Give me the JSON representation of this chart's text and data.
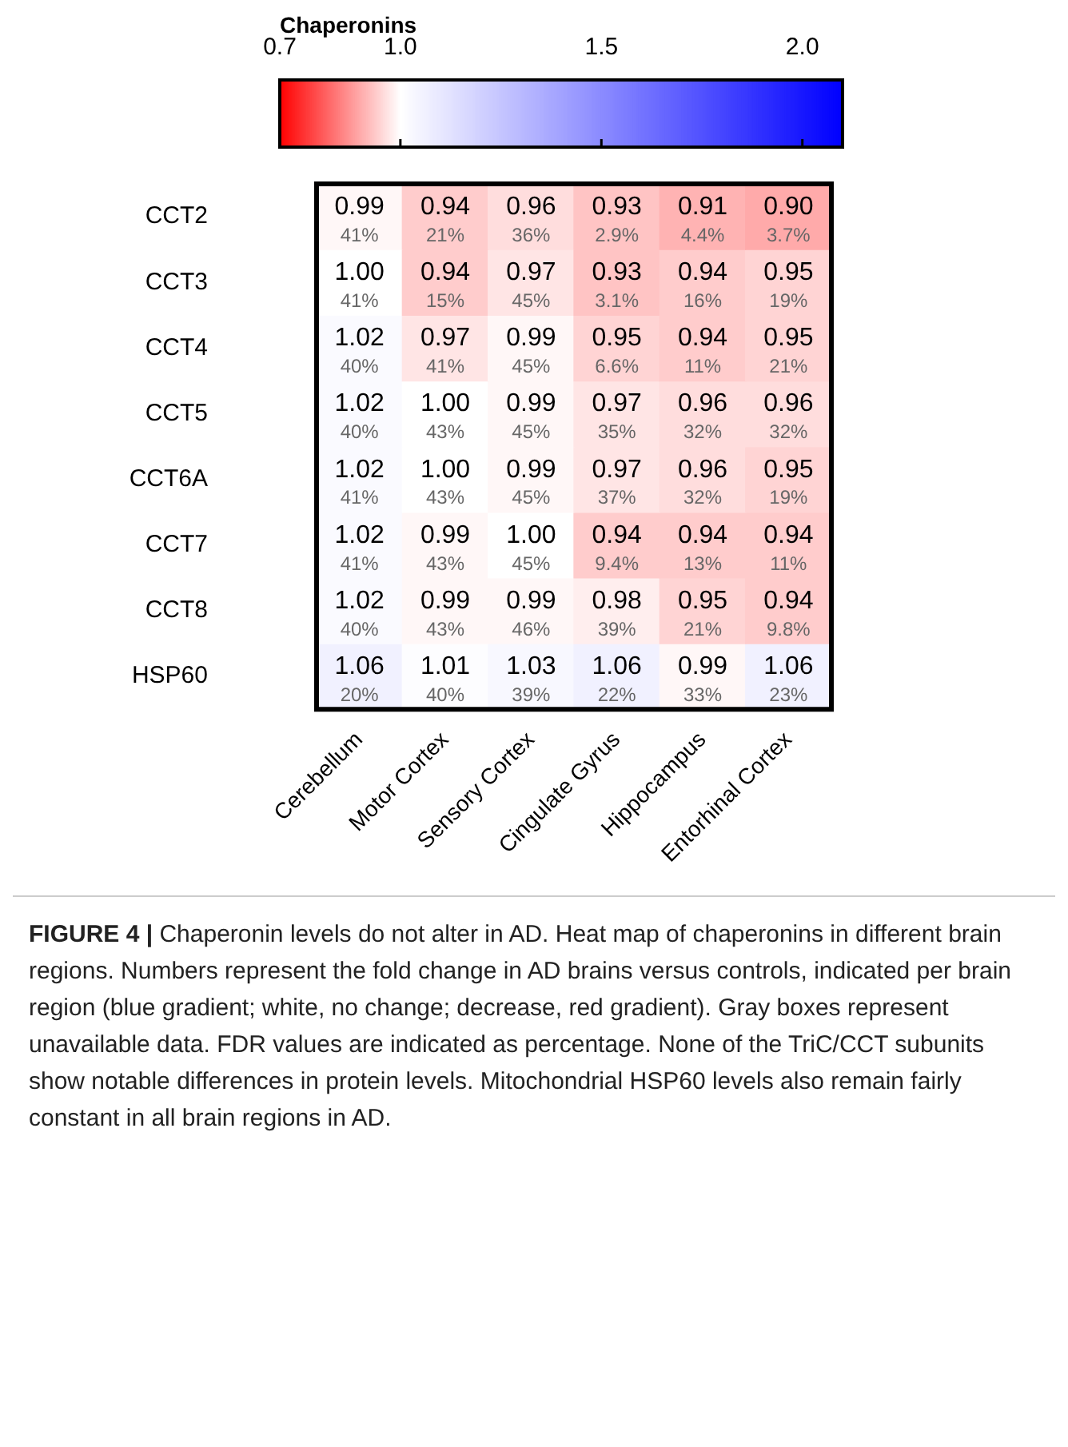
{
  "chart_data": {
    "type": "heatmap",
    "clabel": "Chaperonins",
    "categories": [
      "Cerebellum",
      "Motor Cortex",
      "Sensory Cortex",
      "Cingulate Gyrus",
      "Hippocampus",
      "Entorhinal Cortex"
    ],
    "y_categories": [
      "CCT2",
      "CCT3",
      "CCT4",
      "CCT5",
      "CCT6A",
      "CCT7",
      "CCT8",
      "HSP60"
    ],
    "cells": [
      [
        0.99,
        0.94,
        0.96,
        0.93,
        0.91,
        0.9
      ],
      [
        1.0,
        0.94,
        0.97,
        0.93,
        0.94,
        0.95
      ],
      [
        1.02,
        0.97,
        0.99,
        0.95,
        0.94,
        0.95
      ],
      [
        1.02,
        1.0,
        0.99,
        0.97,
        0.96,
        0.96
      ],
      [
        1.02,
        1.0,
        0.99,
        0.97,
        0.96,
        0.95
      ],
      [
        1.02,
        0.99,
        1.0,
        0.94,
        0.94,
        0.94
      ],
      [
        1.02,
        0.99,
        0.99,
        0.98,
        0.95,
        0.94
      ],
      [
        1.06,
        1.01,
        1.03,
        1.06,
        0.99,
        1.06
      ]
    ],
    "cell_labels": [
      [
        "0.99\n41%",
        "0.94\n21%",
        "0.96\n36%",
        "0.93\n2.9%",
        "0.91\n4.4%",
        "0.90\n3.7%"
      ],
      [
        "1.00\n41%",
        "0.94\n15%",
        "0.97\n45%",
        "0.93\n3.1%",
        "0.94\n16%",
        "0.95\n19%"
      ],
      [
        "1.02\n40%",
        "0.97\n41%",
        "0.99\n45%",
        "0.95\n6.6%",
        "0.94\n11%",
        "0.95\n21%"
      ],
      [
        "1.02\n40%",
        "1.00\n43%",
        "0.99\n45%",
        "0.97\n35%",
        "0.96\n32%",
        "0.96\n32%"
      ],
      [
        "1.02\n41%",
        "1.00\n43%",
        "0.99\n45%",
        "0.97\n37%",
        "0.96\n32%",
        "0.95\n19%"
      ],
      [
        "1.02\n41%",
        "0.99\n43%",
        "1.00\n45%",
        "0.94\n9.4%",
        "0.94\n13%",
        "0.94\n11%"
      ],
      [
        "1.02\n40%",
        "0.99\n43%",
        "0.99\n46%",
        "0.98\n39%",
        "0.95\n21%",
        "0.94\n9.8%"
      ],
      [
        "1.06\n20%",
        "1.01\n40%",
        "1.03\n39%",
        "1.06\n22%",
        "0.99\n33%",
        "1.06\n23%"
      ]
    ],
    "clim": [
      0.7,
      2.1
    ],
    "cticks": [
      0.7,
      {
        "value": 1.0,
        "label": "1.0"
      },
      1.5,
      {
        "value": 2.0,
        "label": "2.0"
      }
    ],
    "annotations": [
      "FIGURE 4 | Chaperonin levels do not alter in AD. Heat map of chaperonins in different brain regions. Numbers represent the fold change in AD brains versus controls, indicated per brain region (blue gradient; white, no change; decrease, red gradient). Gray boxes represent unavailable data. FDR values are indicated as percentage. None of the TriC/CCT subunits show notable differences in protein levels. Mitochondrial HSP60 levels also remain fairly constant in all brain regions in AD."
    ]
  }
}
